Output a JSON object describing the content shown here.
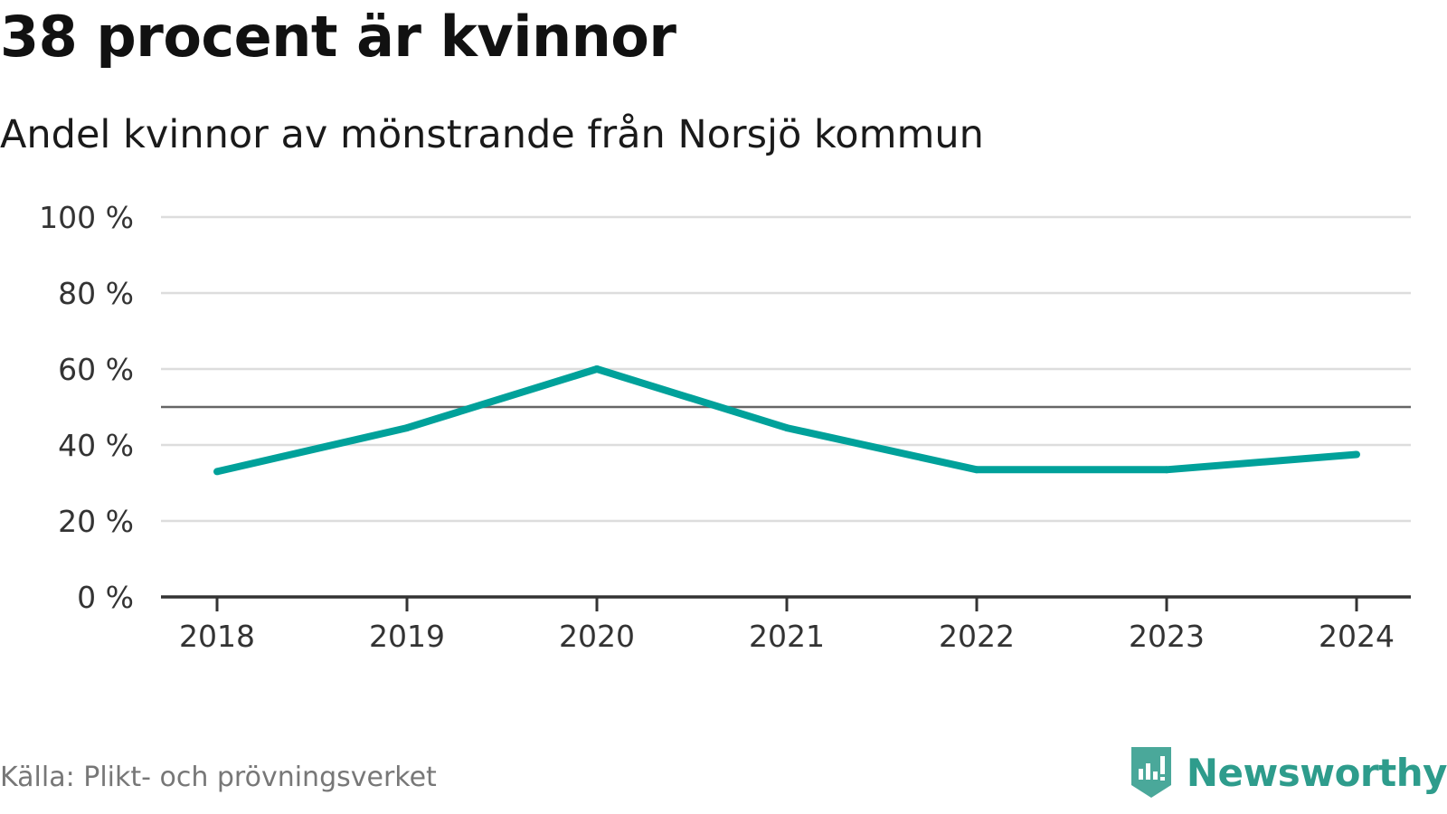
{
  "header": {
    "title": "38 procent är kvinnor",
    "subtitle": "Andel kvinnor av mönstrande från Norsjö kommun"
  },
  "footer": {
    "source": "Källa: Plikt- och prövningsverket",
    "brand": "Newsworthy"
  },
  "colors": {
    "line": "#00a19a",
    "grid": "#dddddd",
    "reference": "#666666",
    "axis": "#333333",
    "brand": "#2e9c8c"
  },
  "chart_data": {
    "type": "line",
    "title": "38 procent är kvinnor",
    "subtitle": "Andel kvinnor av mönstrande från Norsjö kommun",
    "xlabel": "",
    "ylabel": "",
    "categories": [
      "2018",
      "2019",
      "2020",
      "2021",
      "2022",
      "2023",
      "2024"
    ],
    "series": [
      {
        "name": "Andel kvinnor",
        "values": [
          33,
          44.5,
          60,
          44.5,
          33.5,
          33.5,
          37.5
        ]
      }
    ],
    "reference_line": 50,
    "ylim": [
      0,
      100
    ],
    "yticks": [
      0,
      20,
      40,
      60,
      80,
      100
    ],
    "ytick_labels": [
      "0 %",
      "20 %",
      "40 %",
      "60 %",
      "80 %",
      "100 %"
    ],
    "grid": true
  }
}
